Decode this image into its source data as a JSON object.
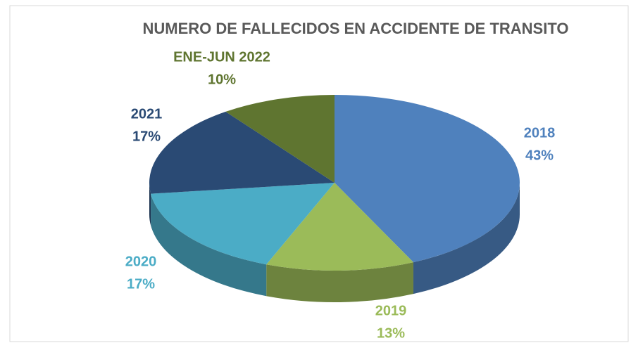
{
  "chart_data": {
    "type": "pie",
    "title": "NUMERO DE FALLECIDOS EN ACCIDENTE DE TRANSITO",
    "categories": [
      "2018",
      "2019",
      "2020",
      "2021",
      "ENE-JUN 2022"
    ],
    "values": [
      43,
      13,
      17,
      17,
      10
    ],
    "value_labels": [
      "43%",
      "13%",
      "17%",
      "17%",
      "10%"
    ],
    "colors": [
      "#4f81bd",
      "#9bbb59",
      "#4bacc6",
      "#2a4a74",
      "#5f7530"
    ]
  }
}
